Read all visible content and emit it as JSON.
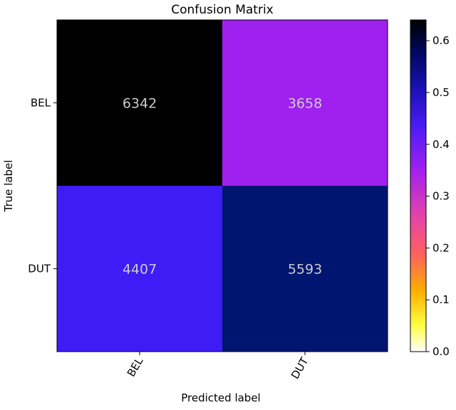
{
  "chart_data": {
    "type": "heatmap",
    "title": "Confusion Matrix",
    "xlabel": "Predicted label",
    "ylabel": "True label",
    "x_categories": [
      "BEL",
      "DUT"
    ],
    "y_categories": [
      "BEL",
      "DUT"
    ],
    "values": [
      [
        6342,
        3658
      ],
      [
        4407,
        5593
      ]
    ],
    "cell_colors": [
      [
        "#000000",
        "#a020f0"
      ],
      [
        "#3f1cf5",
        "#001570"
      ]
    ],
    "value_text_color": "#cccccc",
    "colorbar": {
      "range": [
        0.0,
        0.64
      ],
      "ticks": [
        "0.0",
        "0.1",
        "0.2",
        "0.3",
        "0.4",
        "0.5",
        "0.6"
      ],
      "colormap": "gnuplot2_r"
    }
  }
}
